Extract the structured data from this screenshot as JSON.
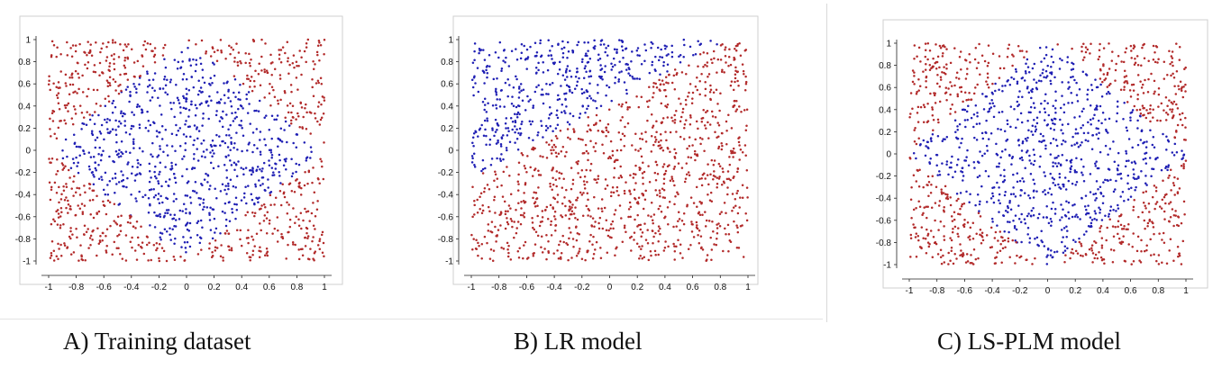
{
  "colors": {
    "class_inside": "#1f1fb4",
    "class_outside": "#b22a2a",
    "axis": "#222222"
  },
  "chart_data": [
    {
      "type": "scatter",
      "caption": "A) Training dataset",
      "xlim": [
        -1,
        1
      ],
      "ylim": [
        -1,
        1
      ],
      "xticks": [
        "-1",
        "-0.8",
        "-0.6",
        "-0.4",
        "-0.2",
        "0",
        "0.2",
        "0.4",
        "0.6",
        "0.8",
        "1"
      ],
      "yticks": [
        "1",
        "0.8",
        "0.6",
        "0.4",
        "0.2",
        "0",
        "-0.2",
        "-0.4",
        "-0.6",
        "-0.8",
        "-1"
      ],
      "grid": false,
      "decision_region": "diamond",
      "region_description": "blue points inside |x|+|y|<=1 (rotated square), red points outside",
      "n_points": 1500
    },
    {
      "type": "scatter",
      "caption": "B) LR model",
      "xlim": [
        -1,
        1
      ],
      "ylim": [
        -1,
        1
      ],
      "xticks": [
        "-1",
        "-0.8",
        "-0.6",
        "-0.4",
        "-0.2",
        "0",
        "0.2",
        "0.4",
        "0.6",
        "0.8",
        "1"
      ],
      "yticks": [
        "1",
        "0.8",
        "0.6",
        "0.4",
        "0.2",
        "0",
        "-0.2",
        "-0.4",
        "-0.6",
        "-0.8",
        "-1"
      ],
      "grid": false,
      "decision_region": "linear",
      "region_description": "blue points above the line from (-1,-0.25) to (0.85,1), red points below",
      "n_points": 1500
    },
    {
      "type": "scatter",
      "caption": "C) LS-PLM model",
      "xlim": [
        -1,
        1
      ],
      "ylim": [
        -1,
        1
      ],
      "xticks": [
        "-1",
        "-0.8",
        "-0.6",
        "-0.4",
        "-0.2",
        "0",
        "0.2",
        "0.4",
        "0.6",
        "0.8",
        "1"
      ],
      "yticks": [
        "1",
        "0.8",
        "0.6",
        "0.4",
        "0.2",
        "0",
        "-0.2",
        "-0.4",
        "-0.6",
        "-0.8",
        "-1"
      ],
      "grid": false,
      "decision_region": "diamond",
      "region_description": "blue points inside a rotated square approximating the diamond, red points outside",
      "n_points": 1500
    }
  ]
}
